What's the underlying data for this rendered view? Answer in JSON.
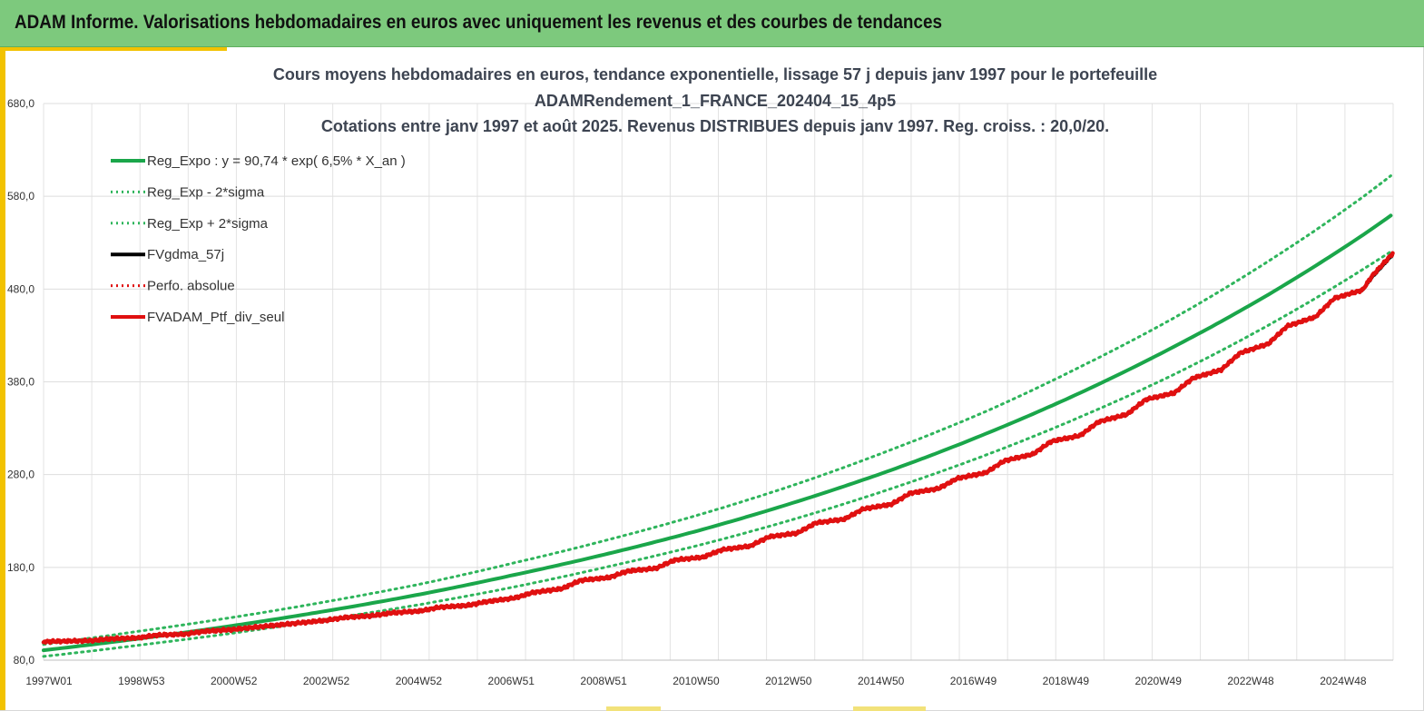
{
  "header": {
    "title": "ADAM Informe. Valorisations hebdomadaires en euros avec uniquement les revenus et des courbes de tendances"
  },
  "colors": {
    "header_bg": "#7dc97d",
    "accent": "#f2c200",
    "trend": "#1aa64a",
    "band": "#2fb55c",
    "smoothed": "#000000",
    "portfolio": "#e01010",
    "perf_absolue": "#e01010"
  },
  "chart_data": {
    "type": "line",
    "title_lines": [
      "Cours moyens hebdomadaires  en euros, tendance exponentielle, lissage 57 j depuis janv 1997 pour le portefeuille",
      "ADAMRendement_1_FRANCE_202404_15_4p5",
      "Cotations  entre janv 1997 et août 2025. Revenus DISTRIBUES depuis janv 1997. Reg. croiss. : 20,0/20."
    ],
    "x_ticks": [
      "1997W01",
      "1998W53",
      "2000W52",
      "2002W52",
      "2004W52",
      "2006W51",
      "2008W51",
      "2010W50",
      "2012W50",
      "2014W50",
      "2016W49",
      "2018W49",
      "2020W49",
      "2022W48",
      "2024W48"
    ],
    "x_range": [
      1997.0,
      2025.65
    ],
    "y_ticks": [
      "80,0",
      "180,0",
      "280,0",
      "380,0",
      "480,0",
      "580,0",
      "680,0"
    ],
    "ylim": [
      80,
      680
    ],
    "grid": true,
    "legend_position": "top-left",
    "legend": [
      {
        "label": "Reg_Expo : y = 90,74 * exp( 6,5% *  X_an )",
        "style": "solid",
        "color": "#1aa64a"
      },
      {
        "label": "Reg_Exp - 2*sigma",
        "style": "dotted",
        "color": "#2fb55c"
      },
      {
        "label": "Reg_Exp + 2*sigma",
        "style": "dotted",
        "color": "#2fb55c"
      },
      {
        "label": "FVgdma_57j",
        "style": "solid",
        "color": "#000000"
      },
      {
        "label": "Perfo. absolue",
        "style": "dotted",
        "color": "#e01010"
      },
      {
        "label": "FVADAM_Ptf_div_seul",
        "style": "solid",
        "color": "#e01010"
      }
    ],
    "series": [
      {
        "name": "Reg_Expo : y = 90,74 * exp( 6,5% *  X_an )",
        "x": [
          1997,
          1999,
          2001,
          2003,
          2005,
          2007,
          2009,
          2011,
          2013,
          2015,
          2017,
          2019,
          2021,
          2023,
          2025,
          2025.65
        ],
        "values": [
          90.7,
          103,
          117,
          133,
          151,
          172,
          195,
          221,
          251,
          285,
          324,
          368,
          418,
          474,
          538,
          561
        ]
      },
      {
        "name": "Reg_Exp - 2*sigma",
        "x": [
          1997,
          1999,
          2001,
          2003,
          2005,
          2007,
          2009,
          2011,
          2013,
          2015,
          2017,
          2019,
          2021,
          2023,
          2025,
          2025.65
        ],
        "values": [
          84,
          96,
          109,
          124,
          140,
          159,
          181,
          205,
          233,
          265,
          301,
          342,
          388,
          441,
          501,
          522
        ]
      },
      {
        "name": "Reg_Exp + 2*sigma",
        "x": [
          1997,
          1999,
          2001,
          2003,
          2005,
          2007,
          2009,
          2011,
          2013,
          2015,
          2017,
          2019,
          2021,
          2023,
          2025,
          2025.65
        ],
        "values": [
          97,
          111,
          126,
          143,
          162,
          185,
          210,
          238,
          270,
          307,
          348,
          396,
          449,
          510,
          579,
          604
        ]
      },
      {
        "name": "FVgdma_57j",
        "x": [
          1997,
          1998,
          1998.4,
          1999,
          1999.4,
          2000,
          2000.4,
          2001,
          2001.4,
          2002,
          2002.4,
          2003,
          2003.4,
          2004,
          2004.4,
          2005,
          2005.4,
          2006,
          2006.4,
          2007,
          2007.4,
          2008,
          2008.4,
          2009,
          2009.4,
          2010,
          2010.4,
          2011,
          2011.4,
          2012,
          2012.4,
          2013,
          2013.4,
          2014,
          2014.4,
          2015,
          2015.4,
          2016,
          2016.4,
          2017,
          2017.4,
          2018,
          2018.4,
          2019,
          2019.4,
          2020,
          2020.4,
          2021,
          2021.4,
          2022,
          2022.4,
          2023,
          2023.4,
          2024,
          2024.4,
          2025,
          2025.2,
          2025.65
        ],
        "values": [
          99,
          101,
          103,
          104,
          106,
          108,
          111,
          112,
          115,
          117,
          120,
          122,
          126,
          127,
          131,
          132,
          137,
          138,
          143,
          146,
          153,
          156,
          166,
          168,
          176,
          178,
          188,
          190,
          199,
          202,
          213,
          216,
          228,
          231,
          243,
          247,
          260,
          264,
          276,
          281,
          295,
          301,
          316,
          321,
          337,
          344,
          361,
          367,
          384,
          392,
          411,
          420,
          440,
          449,
          470,
          478,
          492,
          517
        ]
      },
      {
        "name": "FVADAM_Ptf_div_seul",
        "x": [
          1997,
          1998,
          1998.4,
          1999,
          1999.4,
          2000,
          2000.4,
          2001,
          2001.4,
          2002,
          2002.4,
          2003,
          2003.4,
          2004,
          2004.4,
          2005,
          2005.4,
          2006,
          2006.4,
          2007,
          2007.4,
          2008,
          2008.4,
          2009,
          2009.4,
          2010,
          2010.4,
          2011,
          2011.4,
          2012,
          2012.4,
          2013,
          2013.4,
          2014,
          2014.4,
          2015,
          2015.4,
          2016,
          2016.4,
          2017,
          2017.4,
          2018,
          2018.4,
          2019,
          2019.4,
          2020,
          2020.4,
          2021,
          2021.4,
          2022,
          2022.4,
          2023,
          2023.4,
          2024,
          2024.4,
          2025,
          2025.2,
          2025.65
        ],
        "values": [
          100,
          101,
          103,
          104,
          107,
          108,
          111,
          113,
          115,
          118,
          120,
          123,
          126,
          128,
          131,
          133,
          137,
          139,
          143,
          147,
          153,
          157,
          166,
          169,
          176,
          179,
          188,
          191,
          199,
          203,
          213,
          217,
          228,
          232,
          243,
          248,
          260,
          265,
          276,
          282,
          295,
          302,
          316,
          322,
          337,
          345,
          361,
          368,
          384,
          393,
          411,
          421,
          440,
          450,
          470,
          479,
          494,
          519
        ]
      }
    ]
  }
}
